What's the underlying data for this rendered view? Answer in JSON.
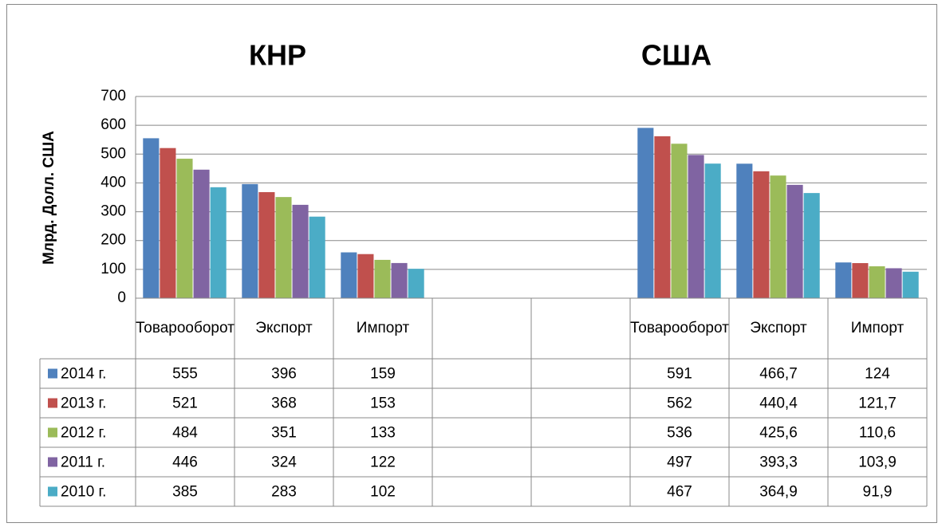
{
  "chart_data": {
    "type": "bar",
    "annotations": [
      "КНР",
      "США"
    ],
    "y_label": "Млрд. Долл. США",
    "categories": [
      "Товарооборот",
      "Экспорт",
      "Импорт",
      null,
      null,
      "Товарооборот",
      "Экспорт",
      "Импорт"
    ],
    "series": [
      {
        "name": "2014 г.",
        "color": "#4f81bd",
        "values": [
          555,
          396,
          159,
          null,
          null,
          591,
          466.7,
          124
        ],
        "value_labels": [
          "555",
          "396",
          "159",
          null,
          null,
          "591",
          "466,7",
          "124"
        ]
      },
      {
        "name": "2013 г.",
        "color": "#c0504d",
        "values": [
          521,
          368,
          153,
          null,
          null,
          562,
          440.4,
          121.7
        ],
        "value_labels": [
          "521",
          "368",
          "153",
          null,
          null,
          "562",
          "440,4",
          "121,7"
        ]
      },
      {
        "name": "2012 г.",
        "color": "#9bbb59",
        "values": [
          484,
          351,
          133,
          null,
          null,
          536,
          425.6,
          110.6
        ],
        "value_labels": [
          "484",
          "351",
          "133",
          null,
          null,
          "536",
          "425,6",
          "110,6"
        ]
      },
      {
        "name": "2011 г.",
        "color": "#8064a2",
        "values": [
          446,
          324,
          122,
          null,
          null,
          497,
          393.3,
          103.9
        ],
        "value_labels": [
          "446",
          "324",
          "122",
          null,
          null,
          "497",
          "393,3",
          "103,9"
        ]
      },
      {
        "name": "2010 г.",
        "color": "#4bacc6",
        "values": [
          385,
          283,
          102,
          null,
          null,
          467,
          364.9,
          91.9
        ],
        "value_labels": [
          "385",
          "283",
          "102",
          null,
          null,
          "467",
          "364,9",
          "91,9"
        ]
      }
    ],
    "ylim": [
      0,
      700
    ],
    "yticks": [
      0,
      100,
      200,
      300,
      400,
      500,
      600,
      700
    ],
    "grid": true
  }
}
